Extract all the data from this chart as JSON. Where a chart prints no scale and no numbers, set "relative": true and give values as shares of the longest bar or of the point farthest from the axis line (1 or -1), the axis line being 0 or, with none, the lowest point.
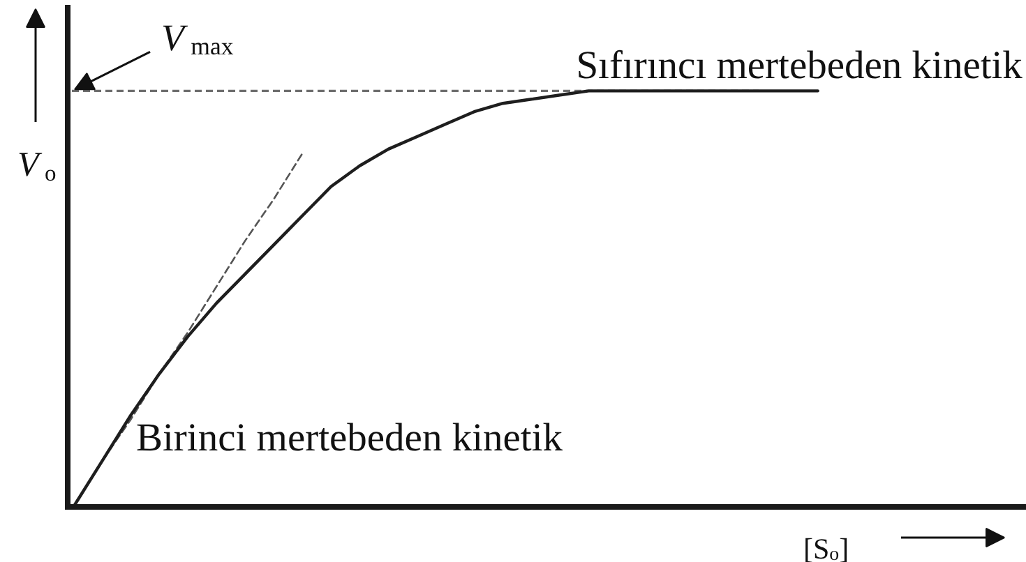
{
  "chart_data": {
    "type": "line",
    "relative": true,
    "ylabel": "V$_{o}$",
    "xlabel": "[S$_{o}$]",
    "categories": [
      null,
      null,
      null,
      null,
      null,
      null,
      null,
      null,
      null,
      null,
      null,
      null,
      null,
      null,
      null,
      null,
      null,
      null,
      null,
      null,
      null,
      null,
      null,
      null,
      null,
      null,
      null
    ],
    "series": [
      {
        "color": "#1e1e1e",
        "values": [
          0,
          0.11,
          0.22,
          0.32,
          0.41,
          0.49,
          0.56,
          0.63,
          0.7,
          0.77,
          0.82,
          0.86,
          0.89,
          0.92,
          0.95,
          0.97,
          0.98,
          0.99,
          1,
          1,
          1,
          1,
          1,
          1,
          1,
          1,
          1
        ]
      },
      {
        "color": "#555555",
        "line_style": "dashed",
        "values": [
          0,
          0.11,
          0.21,
          0.32,
          0.42,
          0.53,
          0.64,
          0.74,
          0.85,
          null,
          null,
          null,
          null,
          null,
          null,
          null,
          null,
          null,
          null,
          null,
          null,
          null,
          null,
          null,
          null,
          null,
          null
        ]
      }
    ],
    "ref_lines": [
      {
        "axis": "y",
        "value": 1,
        "label": "V$_{max}$",
        "color": "#6e6e6e",
        "line_style": "dashed"
      }
    ],
    "annotations": [
      "Sıfırıncı mertebeden kinetik",
      "Birinci mertebeden kinetik"
    ]
  }
}
